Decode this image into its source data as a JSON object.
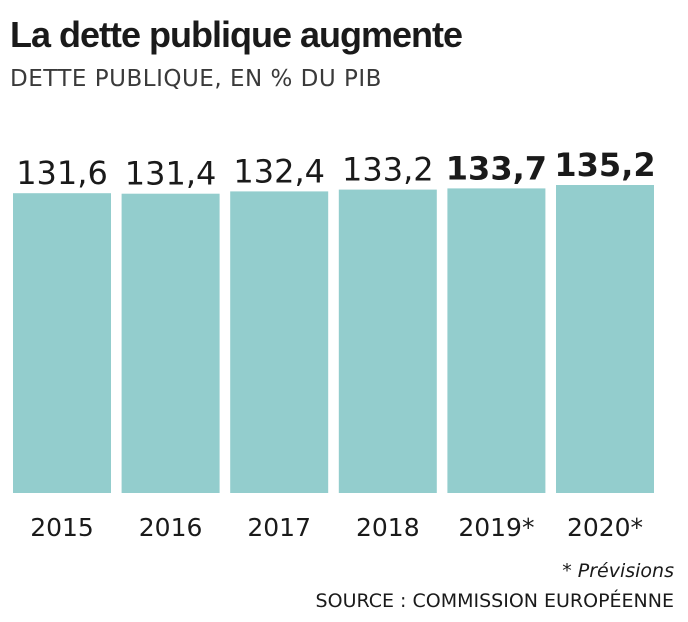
{
  "header": {
    "title": "La dette publique augmente",
    "subtitle": "DETTE PUBLIQUE, EN % DU PIB"
  },
  "footer": {
    "note": "* Prévisions",
    "source": "SOURCE : COMMISSION EUROPÉENNE"
  },
  "colors": {
    "bar": "#93cdcd",
    "text": "#1a1a1a"
  },
  "chart_data": {
    "type": "bar",
    "categories": [
      "2015",
      "2016",
      "2017",
      "2018",
      "2019*",
      "2020*"
    ],
    "values": [
      131.6,
      131.4,
      132.4,
      133.2,
      133.7,
      135.2
    ],
    "value_labels": [
      "131,6",
      "131,4",
      "132,4",
      "133,2",
      "133,7",
      "135,2"
    ],
    "bold_values": [
      false,
      false,
      false,
      false,
      true,
      true
    ],
    "title": "La dette publique augmente",
    "subtitle": "DETTE PUBLIQUE, EN % DU PIB",
    "xlabel": "",
    "ylabel": "",
    "ylim": [
      0,
      135.2
    ],
    "grid": false,
    "legend": "none"
  }
}
